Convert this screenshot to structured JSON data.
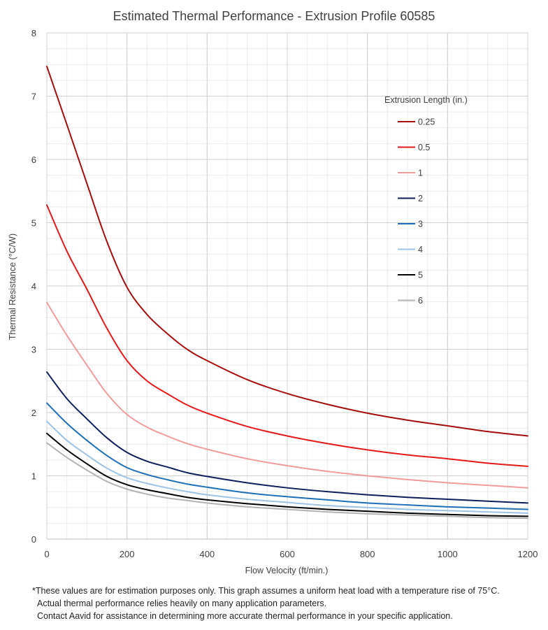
{
  "chart_data": {
    "type": "line",
    "title": "Estimated Thermal Performance - Extrusion Profile 60585",
    "xlabel": "Flow Velocity (ft/min.)",
    "ylabel": "Thermal Resistance (°C/W)",
    "xlim": [
      0,
      1200
    ],
    "ylim": [
      0,
      8
    ],
    "x_ticks": [
      0,
      200,
      400,
      600,
      800,
      1000,
      1200
    ],
    "y_ticks": [
      0,
      1,
      2,
      3,
      4,
      5,
      6,
      7,
      8
    ],
    "x_minor_step": 50,
    "y_minor_step": 0.25,
    "grid": true,
    "legend_title": "Extrusion Length (in.)",
    "legend_position": "top-right",
    "x": [
      0,
      50,
      100,
      150,
      200,
      250,
      300,
      350,
      400,
      500,
      600,
      700,
      800,
      900,
      1000,
      1100,
      1200
    ],
    "series": [
      {
        "name": "0.25",
        "color": "#A50D0D",
        "values": [
          7.47,
          6.55,
          5.62,
          4.7,
          3.98,
          3.55,
          3.25,
          3.0,
          2.82,
          2.52,
          2.3,
          2.13,
          1.99,
          1.88,
          1.79,
          1.7,
          1.63
        ]
      },
      {
        "name": "0.5",
        "color": "#E31919",
        "values": [
          5.28,
          4.55,
          3.95,
          3.33,
          2.82,
          2.5,
          2.3,
          2.12,
          1.99,
          1.78,
          1.63,
          1.51,
          1.41,
          1.33,
          1.27,
          1.2,
          1.15
        ]
      },
      {
        "name": "1",
        "color": "#F29B9B",
        "values": [
          3.74,
          3.22,
          2.75,
          2.3,
          1.97,
          1.77,
          1.63,
          1.51,
          1.42,
          1.27,
          1.16,
          1.07,
          1.0,
          0.94,
          0.89,
          0.85,
          0.81
        ]
      },
      {
        "name": "2",
        "color": "#0F1F5C",
        "values": [
          2.64,
          2.22,
          1.9,
          1.6,
          1.37,
          1.23,
          1.14,
          1.05,
          0.99,
          0.89,
          0.81,
          0.75,
          0.7,
          0.66,
          0.63,
          0.6,
          0.57
        ]
      },
      {
        "name": "3",
        "color": "#1F6FB8",
        "values": [
          2.15,
          1.83,
          1.56,
          1.32,
          1.13,
          1.02,
          0.94,
          0.87,
          0.82,
          0.73,
          0.67,
          0.62,
          0.57,
          0.54,
          0.51,
          0.49,
          0.47
        ]
      },
      {
        "name": "4",
        "color": "#9DC3E6",
        "values": [
          1.86,
          1.56,
          1.33,
          1.12,
          0.97,
          0.88,
          0.81,
          0.75,
          0.7,
          0.63,
          0.58,
          0.53,
          0.5,
          0.47,
          0.45,
          0.43,
          0.41
        ]
      },
      {
        "name": "5",
        "color": "#000000",
        "values": [
          1.67,
          1.41,
          1.19,
          0.99,
          0.86,
          0.78,
          0.72,
          0.66,
          0.62,
          0.56,
          0.51,
          0.47,
          0.44,
          0.41,
          0.39,
          0.37,
          0.36
        ]
      },
      {
        "name": "6",
        "color": "#B3B3B3",
        "values": [
          1.52,
          1.29,
          1.09,
          0.91,
          0.79,
          0.71,
          0.65,
          0.61,
          0.57,
          0.51,
          0.47,
          0.43,
          0.4,
          0.38,
          0.36,
          0.34,
          0.33
        ]
      }
    ]
  },
  "footnote": {
    "line1": "*These values are for estimation purposes only. This graph assumes a uniform heat load with a temperature rise of 75°C.",
    "line2": "Actual thermal performance relies heavily on many application parameters.",
    "line3": "Contact Aavid for assistance in determining more accurate thermal performance in your specific application."
  }
}
